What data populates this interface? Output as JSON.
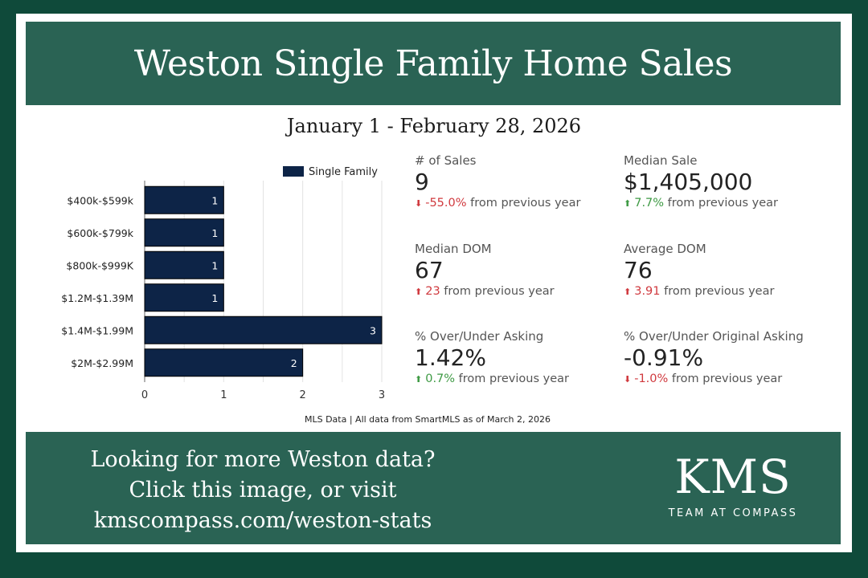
{
  "header": {
    "title": "Weston Single Family Home Sales",
    "date_range": "January 1 - February 28, 2026"
  },
  "chart_data": {
    "type": "bar",
    "orientation": "horizontal",
    "categories": [
      "$400k-$599k",
      "$600k-$799k",
      "$800k-$999K",
      "$1.2M-$1.39M",
      "$1.4M-$1.99M",
      "$2M-$2.99M"
    ],
    "series": [
      {
        "name": "Single Family",
        "values": [
          1,
          1,
          1,
          1,
          3,
          2
        ]
      }
    ],
    "xlim": [
      0,
      3
    ],
    "xticks": [
      "0",
      "1",
      "2",
      "3"
    ],
    "grid": true,
    "legend": "top-right",
    "bar_color": "#0d2447"
  },
  "stats": [
    {
      "label": "# of Sales",
      "value": "9",
      "direction": "down",
      "change": "-55.0%",
      "suffix": "from previous year"
    },
    {
      "label": "Median Sale",
      "value": "$1,405,000",
      "direction": "up",
      "change": "7.7%",
      "suffix": "from previous year"
    },
    {
      "label": "Median DOM",
      "value": "67",
      "direction": "up-bad",
      "change": "23",
      "suffix": "from previous year"
    },
    {
      "label": "Average DOM",
      "value": "76",
      "direction": "up-bad",
      "change": "3.91",
      "suffix": "from previous year"
    },
    {
      "label": "% Over/Under Asking",
      "value": "1.42%",
      "direction": "up",
      "change": "0.7%",
      "suffix": "from previous year"
    },
    {
      "label": "% Over/Under Original Asking",
      "value": "-0.91%",
      "direction": "down",
      "change": "-1.0%",
      "suffix": "from previous year"
    }
  ],
  "footnote": "MLS Data | All data from SmartMLS as of March 2, 2026",
  "cta": {
    "line1": "Looking for more Weston data?",
    "line2": "Click this image, or visit",
    "line3": "kmscompass.com/weston-stats"
  },
  "logo": {
    "mark": "KMS",
    "sub": "TEAM AT COMPASS"
  },
  "colors": {
    "background": "#0f4a3a",
    "banner": "#2a6354",
    "down": "#d0393e",
    "up": "#3e9a44"
  }
}
